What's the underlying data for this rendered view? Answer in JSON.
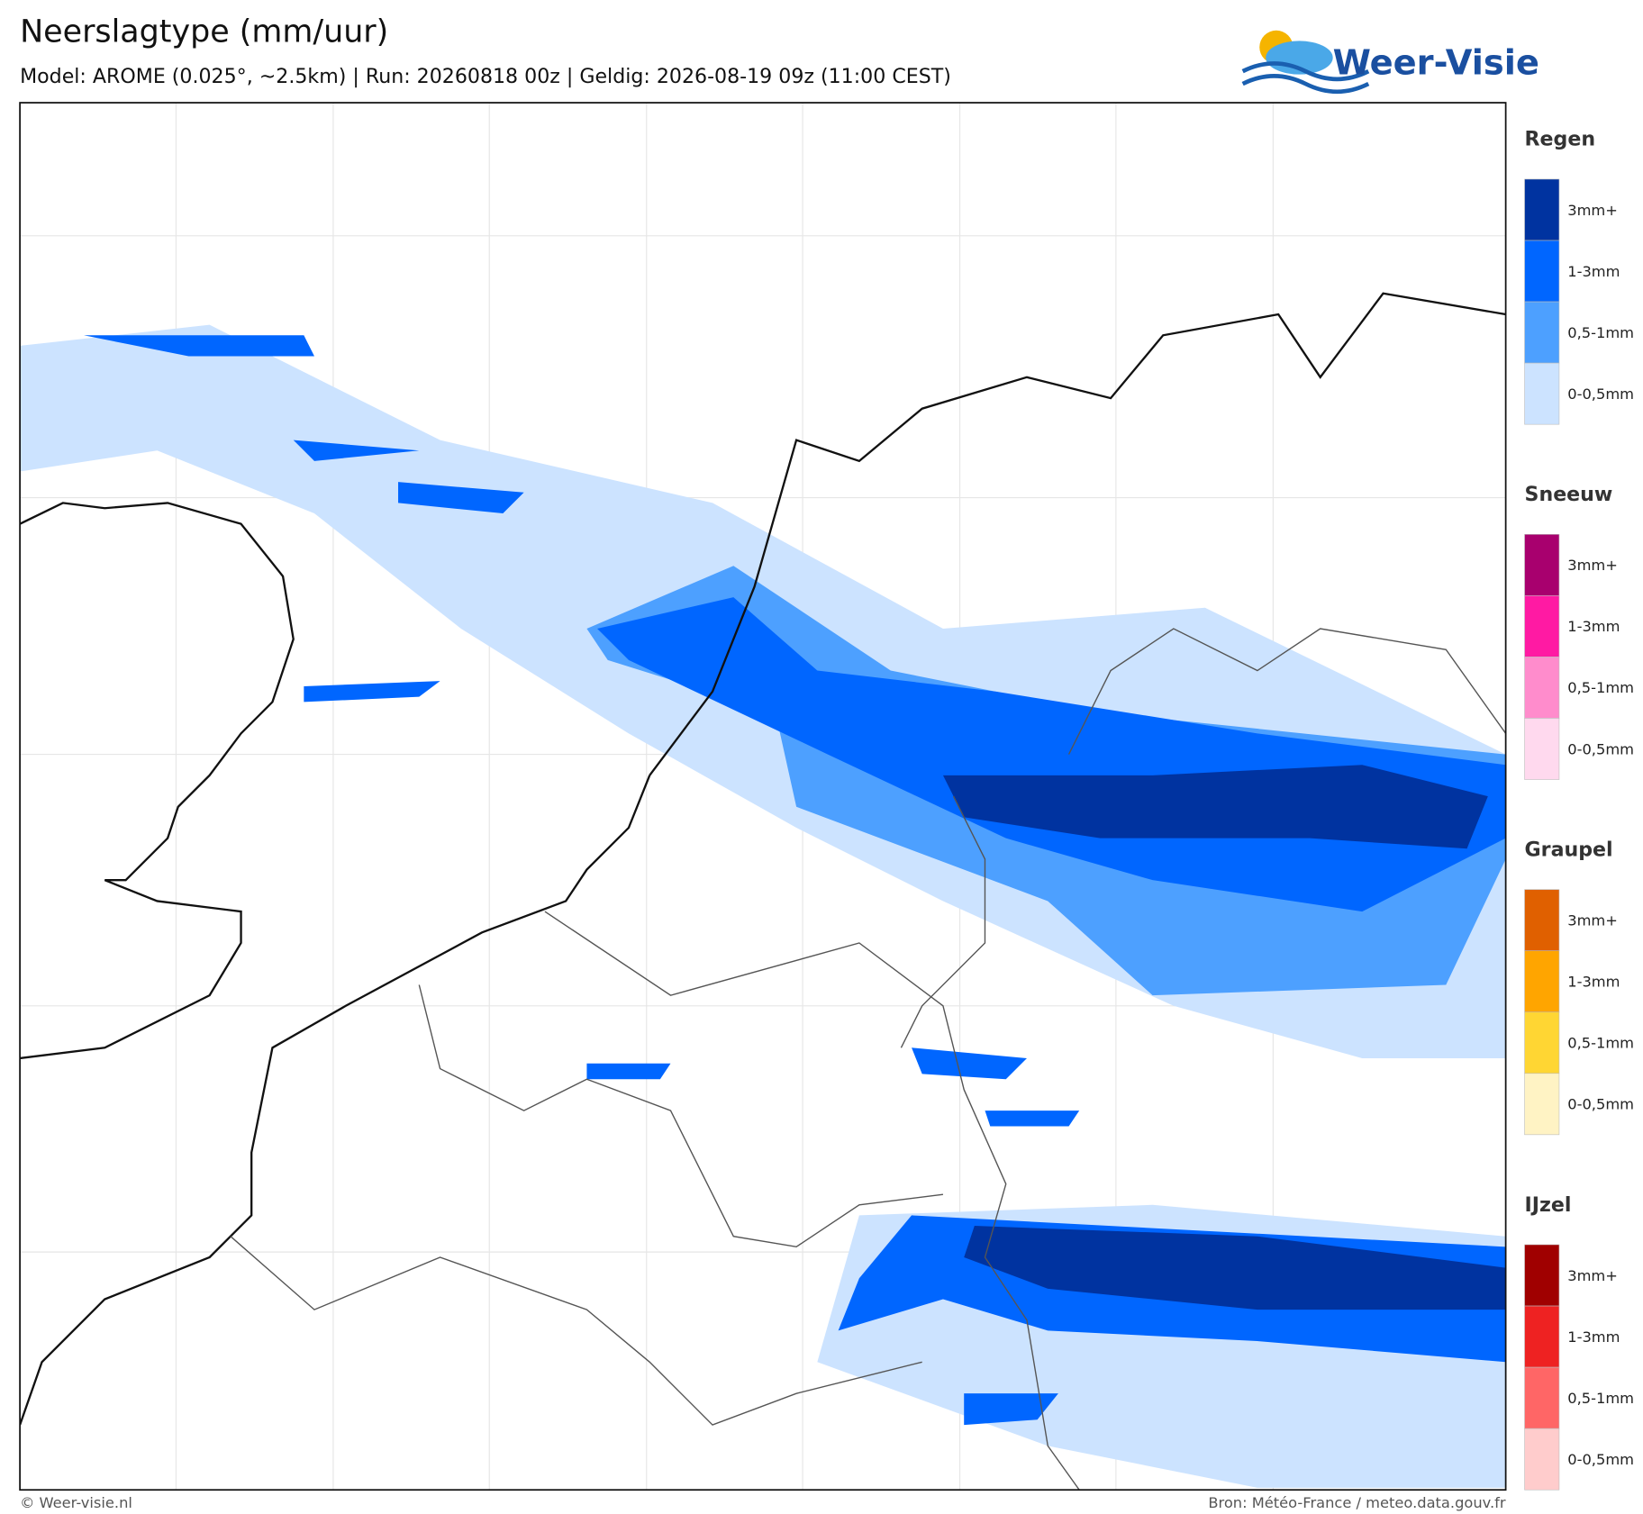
{
  "header": {
    "title": "Neerslagtype (mm/uur)",
    "subtitle": "Model: AROME (0.025°, ~2.5km)  |  Run: 20260818 00z  |  Geldig: 2026-08-19 09z (11:00 CEST)"
  },
  "logo": {
    "text": "Weer-Visie"
  },
  "legend": [
    {
      "title": "Regen",
      "items": [
        "3mm+",
        "1-3mm",
        "0,5-1mm",
        "0-0,5mm"
      ],
      "colors": [
        "#0033a0",
        "#0066ff",
        "#4da0ff",
        "#cce3ff"
      ]
    },
    {
      "title": "Sneeuw",
      "items": [
        "3mm+",
        "1-3mm",
        "0,5-1mm",
        "0-0,5mm"
      ],
      "colors": [
        "#a8006e",
        "#ff1aa3",
        "#ff8ccc",
        "#ffd9ee"
      ]
    },
    {
      "title": "Graupel",
      "items": [
        "3mm+",
        "1-3mm",
        "0,5-1mm",
        "0-0,5mm"
      ],
      "colors": [
        "#e06000",
        "#ffa500",
        "#ffd633",
        "#fff3c4"
      ]
    },
    {
      "title": "IJzel",
      "items": [
        "3mm+",
        "1-3mm",
        "0,5-1mm",
        "0-0,5mm"
      ],
      "colors": [
        "#a00000",
        "#ee2222",
        "#ff6666",
        "#ffcccc"
      ]
    }
  ],
  "footer": {
    "left": "© Weer-visie.nl",
    "right": "Bron: Météo-France / meteo.data.gouv.fr"
  }
}
